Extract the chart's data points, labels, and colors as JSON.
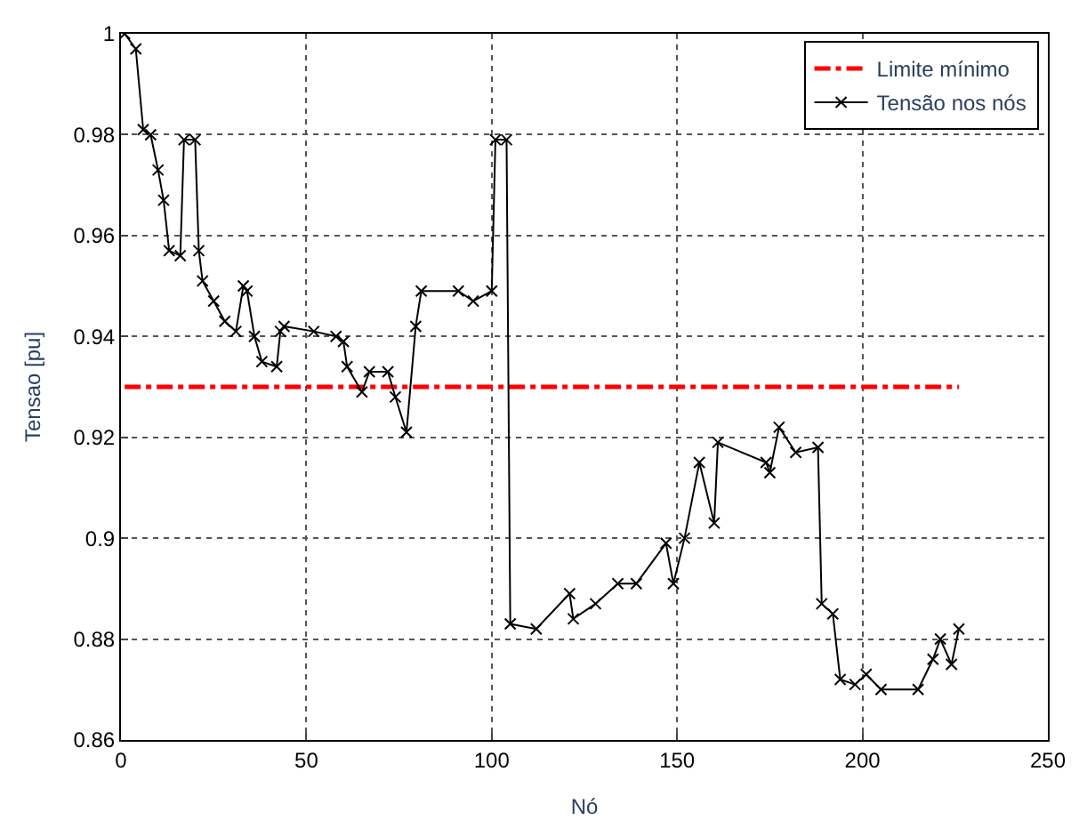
{
  "chart_data": {
    "type": "line",
    "xlabel": "Nó",
    "ylabel": "Tensao [pu]",
    "xlim": [
      0,
      250
    ],
    "xticks": [
      0,
      50,
      100,
      150,
      200,
      250
    ],
    "ylim": [
      0.86,
      1
    ],
    "yticks": [
      0.86,
      0.88,
      0.9,
      0.92,
      0.94,
      0.96,
      0.98,
      1
    ],
    "grid": true,
    "legend": "top right",
    "series": [
      {
        "name": "Limite mínimo",
        "color": "#ff0000",
        "line_style": "dashed",
        "marker": "none",
        "x": [
          1,
          226
        ],
        "values": [
          0.93,
          0.93
        ]
      },
      {
        "name": "Tensão nos nós",
        "color": "#000000",
        "line_style": "solid",
        "marker": "cross",
        "x": [
          1,
          4,
          6,
          8,
          10,
          11.5,
          13,
          16,
          17,
          20,
          21,
          22,
          25,
          28,
          31,
          33,
          34,
          36,
          38,
          42,
          43,
          44,
          52,
          58,
          60,
          61,
          65,
          67,
          72,
          74,
          77,
          79.5,
          81,
          91,
          95,
          100,
          101,
          104,
          105,
          112,
          121,
          122,
          128,
          134,
          139,
          147,
          149,
          152,
          156,
          160,
          161,
          174,
          175,
          177.5,
          182,
          188,
          189,
          192,
          194,
          198,
          201,
          205,
          215,
          219,
          221,
          224,
          226
        ],
        "values": [
          1.0,
          0.997,
          0.981,
          0.98,
          0.973,
          0.967,
          0.957,
          0.956,
          0.979,
          0.979,
          0.957,
          0.951,
          0.947,
          0.943,
          0.941,
          0.95,
          0.949,
          0.94,
          0.935,
          0.934,
          0.941,
          0.942,
          0.941,
          0.94,
          0.939,
          0.934,
          0.929,
          0.933,
          0.933,
          0.928,
          0.921,
          0.942,
          0.949,
          0.949,
          0.947,
          0.949,
          0.979,
          0.979,
          0.883,
          0.882,
          0.889,
          0.884,
          0.887,
          0.891,
          0.891,
          0.899,
          0.891,
          0.9,
          0.915,
          0.903,
          0.919,
          0.915,
          0.913,
          0.922,
          0.917,
          0.918,
          0.887,
          0.885,
          0.872,
          0.871,
          0.873,
          0.87,
          0.87,
          0.876,
          0.88,
          0.875,
          0.882
        ]
      }
    ]
  }
}
